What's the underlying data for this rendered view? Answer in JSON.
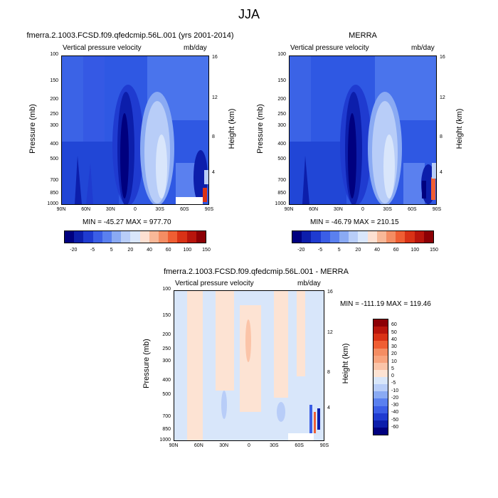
{
  "figure": {
    "title": "JJA"
  },
  "chart_data": [
    {
      "type": "heatmap",
      "panel": "model",
      "title": "fmerra.2.1003.FCSD.f09.qfedcmip.56L.001 (yrs 2001-2014)",
      "left_title": "Vertical pressure velocity",
      "right_title": "mb/day",
      "xlabel": "",
      "ylabel": "Pressure (mb)",
      "y2label": "Height (km)",
      "x_ticks": [
        "90N",
        "60N",
        "30N",
        "0",
        "30S",
        "60S",
        "90S"
      ],
      "y_ticks": [
        "100",
        "150",
        "200",
        "250",
        "300",
        "400",
        "500",
        "700",
        "850",
        "1000"
      ],
      "y2_ticks": [
        "16",
        "12",
        "8",
        "4"
      ],
      "stats": "MIN = -45.27   MAX = 977.70",
      "colorbar_labels": [
        "-20",
        "-5",
        "5",
        "20",
        "40",
        "60",
        "100",
        "150"
      ],
      "colorbar_colors": [
        "#00007f",
        "#0c1eab",
        "#1f3bd0",
        "#3b5ee6",
        "#5a80ef",
        "#8aaaf3",
        "#b8cdf8",
        "#d9e6fb",
        "#fde0d2",
        "#f8b898",
        "#f48d63",
        "#ef5e33",
        "#d93216",
        "#b8150c",
        "#8c0005"
      ]
    },
    {
      "type": "heatmap",
      "panel": "obs",
      "title": "MERRA",
      "left_title": "Vertical pressure velocity",
      "right_title": "mb/day",
      "xlabel": "",
      "ylabel": "Pressure (mb)",
      "y2label": "Height (km)",
      "x_ticks": [
        "90N",
        "60N",
        "30N",
        "0",
        "30S",
        "60S",
        "90S"
      ],
      "y_ticks": [
        "100",
        "150",
        "200",
        "250",
        "300",
        "400",
        "500",
        "700",
        "850",
        "1000"
      ],
      "y2_ticks": [
        "16",
        "12",
        "8",
        "4"
      ],
      "stats": "MIN = -46.79   MAX = 210.15",
      "colorbar_labels": [
        "-20",
        "-5",
        "5",
        "20",
        "40",
        "60",
        "100",
        "150"
      ],
      "colorbar_colors": [
        "#00007f",
        "#0c1eab",
        "#1f3bd0",
        "#3b5ee6",
        "#5a80ef",
        "#8aaaf3",
        "#b8cdf8",
        "#d9e6fb",
        "#fde0d2",
        "#f8b898",
        "#f48d63",
        "#ef5e33",
        "#d93216",
        "#b8150c",
        "#8c0005"
      ]
    },
    {
      "type": "heatmap",
      "panel": "diff",
      "title": "fmerra.2.1003.FCSD.f09.qfedcmip.56L.001 - MERRA",
      "left_title": "Vertical pressure velocity",
      "right_title": "mb/day",
      "xlabel": "",
      "ylabel": "Pressure (mb)",
      "y2label": "Height (km)",
      "x_ticks": [
        "90N",
        "60N",
        "30N",
        "0",
        "30S",
        "60S",
        "90S"
      ],
      "y_ticks": [
        "100",
        "150",
        "200",
        "250",
        "300",
        "400",
        "500",
        "700",
        "850",
        "1000"
      ],
      "y2_ticks": [
        "16",
        "12",
        "8",
        "4"
      ],
      "stats": "MIN = -111.19   MAX = 119.46",
      "colorbar_labels": [
        "60",
        "50",
        "40",
        "30",
        "20",
        "10",
        "5",
        "0",
        "-5",
        "-10",
        "-20",
        "-30",
        "-40",
        "-50",
        "-60"
      ],
      "colorbar_colors": [
        "#8c0005",
        "#b8150c",
        "#d93216",
        "#ef5e33",
        "#f48d63",
        "#f8a47e",
        "#fbc4a8",
        "#fde3d3",
        "#d8e6fa",
        "#b8cdf8",
        "#8aaaf3",
        "#5a80ef",
        "#3b5ee6",
        "#1f3bd0",
        "#0c1eab",
        "#00007f"
      ]
    }
  ]
}
